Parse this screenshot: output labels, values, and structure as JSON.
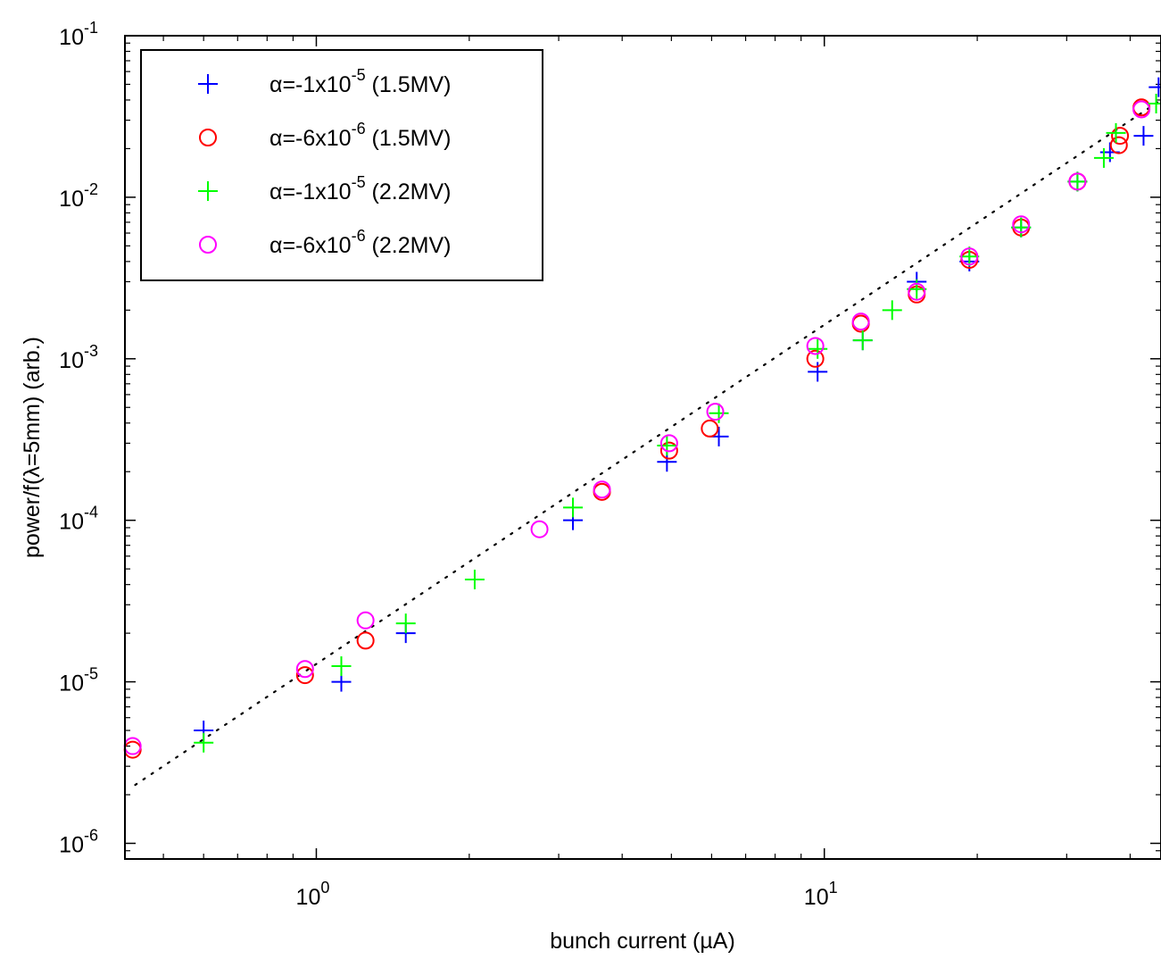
{
  "chart_data": {
    "type": "scatter",
    "title": "",
    "xlabel": "bunch current (µA)",
    "ylabel": "power/f(λ=5mm) (arb.)",
    "x_scale": "log",
    "y_scale": "log",
    "xlim": [
      0.42,
      46
    ],
    "ylim": [
      8e-07,
      0.1
    ],
    "grid": false,
    "legend_position": "top-left",
    "x_ticks": [
      {
        "value": 1,
        "base": "10",
        "exp": "0"
      },
      {
        "value": 10,
        "base": "10",
        "exp": "1"
      }
    ],
    "y_ticks": [
      {
        "value": 1e-06,
        "base": "10",
        "exp": "-6"
      },
      {
        "value": 1e-05,
        "base": "10",
        "exp": "-5"
      },
      {
        "value": 0.0001,
        "base": "10",
        "exp": "-4"
      },
      {
        "value": 0.001,
        "base": "10",
        "exp": "-3"
      },
      {
        "value": 0.01,
        "base": "10",
        "exp": "-2"
      },
      {
        "value": 0.1,
        "base": "10",
        "exp": "-1"
      }
    ],
    "series": [
      {
        "legend_pre": "α=-1x10",
        "legend_exp": "-5",
        "legend_post": " (1.5MV)",
        "marker": "plus",
        "color": "#0000ff",
        "x": [
          0.6,
          1.12,
          1.5,
          3.2,
          4.9,
          6.2,
          9.7,
          11.9,
          15.2,
          19.3,
          24.4,
          31.5,
          36.5,
          42.5,
          45.5
        ],
        "y": [
          5e-06,
          1e-05,
          2e-05,
          0.0001,
          0.00023,
          0.00033,
          0.00083,
          0.0013,
          0.003,
          0.004,
          0.0065,
          0.0125,
          0.019,
          0.024,
          0.048
        ]
      },
      {
        "legend_pre": "α=-6x10",
        "legend_exp": "-6",
        "legend_post": " (1.5MV)",
        "marker": "circle",
        "color": "#ff0000",
        "x": [
          0.435,
          0.95,
          1.25,
          3.65,
          4.95,
          5.95,
          9.6,
          11.8,
          15.2,
          19.3,
          24.4,
          31.5,
          38.0,
          38.2,
          42.1
        ],
        "y": [
          3.8e-06,
          1.1e-05,
          1.8e-05,
          0.00015,
          0.00027,
          0.00037,
          0.001,
          0.00165,
          0.0025,
          0.0041,
          0.0065,
          0.0125,
          0.021,
          0.024,
          0.036
        ]
      },
      {
        "legend_pre": "α=-1x10",
        "legend_exp": "-5",
        "legend_post": " (2.2MV)",
        "marker": "plus",
        "color": "#00ff00",
        "x": [
          0.6,
          1.12,
          1.5,
          2.05,
          3.2,
          4.9,
          6.2,
          9.7,
          11.9,
          13.6,
          15.2,
          19.3,
          24.4,
          31.5,
          35.5,
          37.5,
          45.0
        ],
        "y": [
          4.2e-06,
          1.25e-05,
          2.3e-05,
          4.3e-05,
          0.00012,
          0.00029,
          0.00046,
          0.00115,
          0.0013,
          0.002,
          0.0027,
          0.0043,
          0.0065,
          0.0125,
          0.0175,
          0.025,
          0.038
        ]
      },
      {
        "legend_pre": "α=-6x10",
        "legend_exp": "-6",
        "legend_post": " (2.2MV)",
        "marker": "circle",
        "color": "#ff00ff",
        "x": [
          0.435,
          0.95,
          1.25,
          2.75,
          3.65,
          4.95,
          6.1,
          9.6,
          11.8,
          15.2,
          19.3,
          24.4,
          31.5,
          42.1
        ],
        "y": [
          4e-06,
          1.2e-05,
          2.4e-05,
          8.8e-05,
          0.000155,
          0.0003,
          0.00047,
          0.0012,
          0.0017,
          0.0026,
          0.0043,
          0.0068,
          0.0125,
          0.035
        ]
      }
    ],
    "fit_line": {
      "style": "dotted",
      "color": "#000000",
      "x": [
        0.44,
        46
      ],
      "y": [
        2.3e-06,
        0.04
      ]
    }
  }
}
